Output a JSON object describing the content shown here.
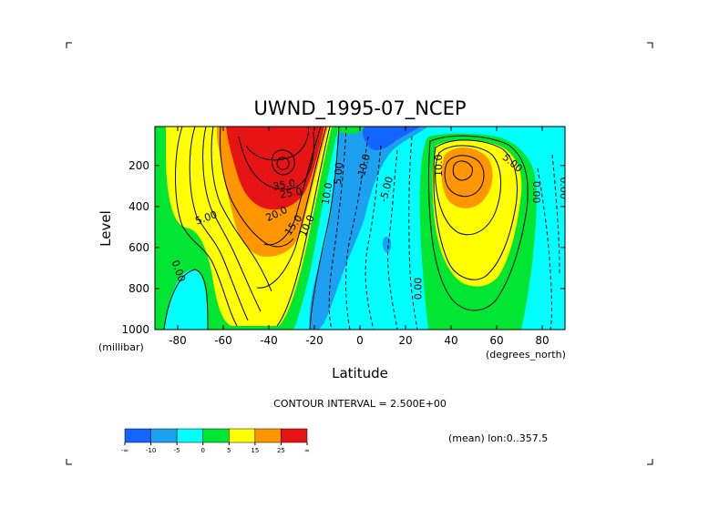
{
  "chart_data": {
    "type": "contour",
    "title": "UWND_1995-07_NCEP",
    "xlabel": "Latitude",
    "ylabel": "Level",
    "x_units": "(degrees_north)",
    "y_units": "(millibar)",
    "xlim": [
      -90,
      90
    ],
    "ylim": [
      1000,
      10
    ],
    "y_inverted": true,
    "x_ticks": [
      {
        "value": -80,
        "label": "-80"
      },
      {
        "value": -60,
        "label": "-60"
      },
      {
        "value": -40,
        "label": "-40"
      },
      {
        "value": -20,
        "label": "-20"
      },
      {
        "value": 0,
        "label": "0"
      },
      {
        "value": 20,
        "label": "20"
      },
      {
        "value": 40,
        "label": "40"
      },
      {
        "value": 60,
        "label": "60"
      },
      {
        "value": 80,
        "label": "80"
      }
    ],
    "y_ticks": [
      {
        "value": 200,
        "label": "200"
      },
      {
        "value": 400,
        "label": "400"
      },
      {
        "value": 600,
        "label": "600"
      },
      {
        "value": 800,
        "label": "800"
      },
      {
        "value": 1000,
        "label": "1000"
      }
    ],
    "contour_interval_text": "CONTOUR INTERVAL = 2.500E+00",
    "averaging_text": "(mean) lon:0..357.5",
    "colorbar": {
      "colors": [
        "#1464ff",
        "#1ea0f0",
        "#00ffff",
        "#00e632",
        "#ffff00",
        "#ff9600",
        "#e61414"
      ],
      "labels": [
        "-∞",
        "-10",
        "-5",
        "0",
        "5",
        "15",
        "25",
        "∞"
      ]
    },
    "contour_labels": [
      {
        "text": "5.00",
        "x": -67,
        "y": 470,
        "angle": -20
      },
      {
        "text": "0.00",
        "x": -81,
        "y": 720,
        "angle": 70
      },
      {
        "text": "35.0",
        "x": -33,
        "y": 310,
        "angle": -10
      },
      {
        "text": "25.0",
        "x": -30,
        "y": 350,
        "angle": -10
      },
      {
        "text": "20.0",
        "x": -36,
        "y": 450,
        "angle": -25
      },
      {
        "text": "15.0",
        "x": -28,
        "y": 500,
        "angle": -55
      },
      {
        "text": "10.0",
        "x": -22,
        "y": 500,
        "angle": -65
      },
      {
        "text": "10.0",
        "x": -13,
        "y": 340,
        "angle": -80
      },
      {
        "text": "5.00",
        "x": -8,
        "y": 240,
        "angle": -85
      },
      {
        "text": "-10.0",
        "x": 3,
        "y": 210,
        "angle": -75
      },
      {
        "text": "-5.00",
        "x": 13,
        "y": 320,
        "angle": -75
      },
      {
        "text": "0.00",
        "x": 27,
        "y": 800,
        "angle": -90
      },
      {
        "text": "10.0",
        "x": 36,
        "y": 200,
        "angle": -90
      },
      {
        "text": "5.00",
        "x": 66,
        "y": 200,
        "angle": 40
      },
      {
        "text": "0.00",
        "x": 76,
        "y": 330,
        "angle": 90
      },
      {
        "text": "0.00",
        "x": 88,
        "y": 310,
        "angle": 90
      }
    ]
  }
}
